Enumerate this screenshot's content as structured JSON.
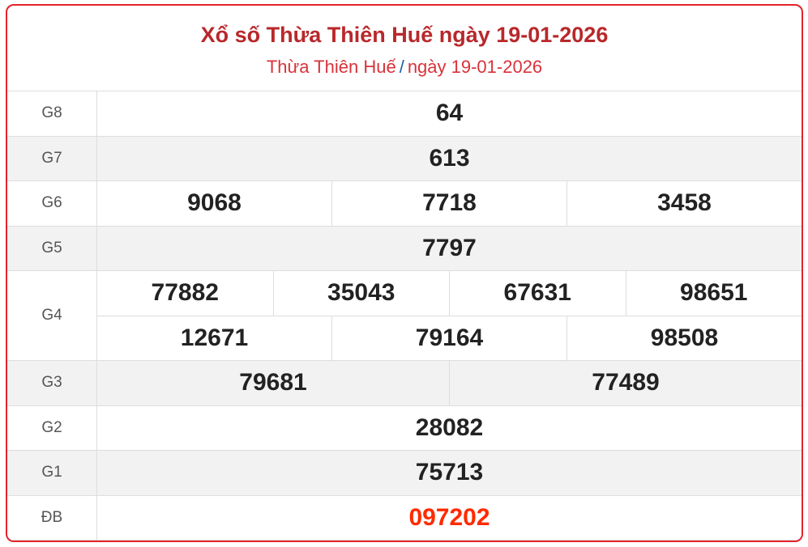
{
  "header": {
    "title": "Xổ số Thừa Thiên Huế ngày 19-01-2026",
    "breadcrumb_province": "Thừa Thiên Huế",
    "breadcrumb_separator": "/",
    "breadcrumb_date": "ngày 19-01-2026"
  },
  "colors": {
    "border": "#e3242b",
    "title": "#b8282b",
    "special": "#ff2a00",
    "separator": "#1a5ea8"
  },
  "prizes": [
    {
      "label": "G8",
      "rows": [
        [
          "64"
        ]
      ]
    },
    {
      "label": "G7",
      "rows": [
        [
          "613"
        ]
      ]
    },
    {
      "label": "G6",
      "rows": [
        [
          "9068",
          "7718",
          "3458"
        ]
      ]
    },
    {
      "label": "G5",
      "rows": [
        [
          "7797"
        ]
      ]
    },
    {
      "label": "G4",
      "rows": [
        [
          "77882",
          "35043",
          "67631",
          "98651"
        ],
        [
          "12671",
          "79164",
          "98508"
        ]
      ]
    },
    {
      "label": "G3",
      "rows": [
        [
          "79681",
          "77489"
        ]
      ]
    },
    {
      "label": "G2",
      "rows": [
        [
          "28082"
        ]
      ]
    },
    {
      "label": "G1",
      "rows": [
        [
          "75713"
        ]
      ]
    },
    {
      "label": "ĐB",
      "rows": [
        [
          "097202"
        ]
      ],
      "special": true
    }
  ]
}
